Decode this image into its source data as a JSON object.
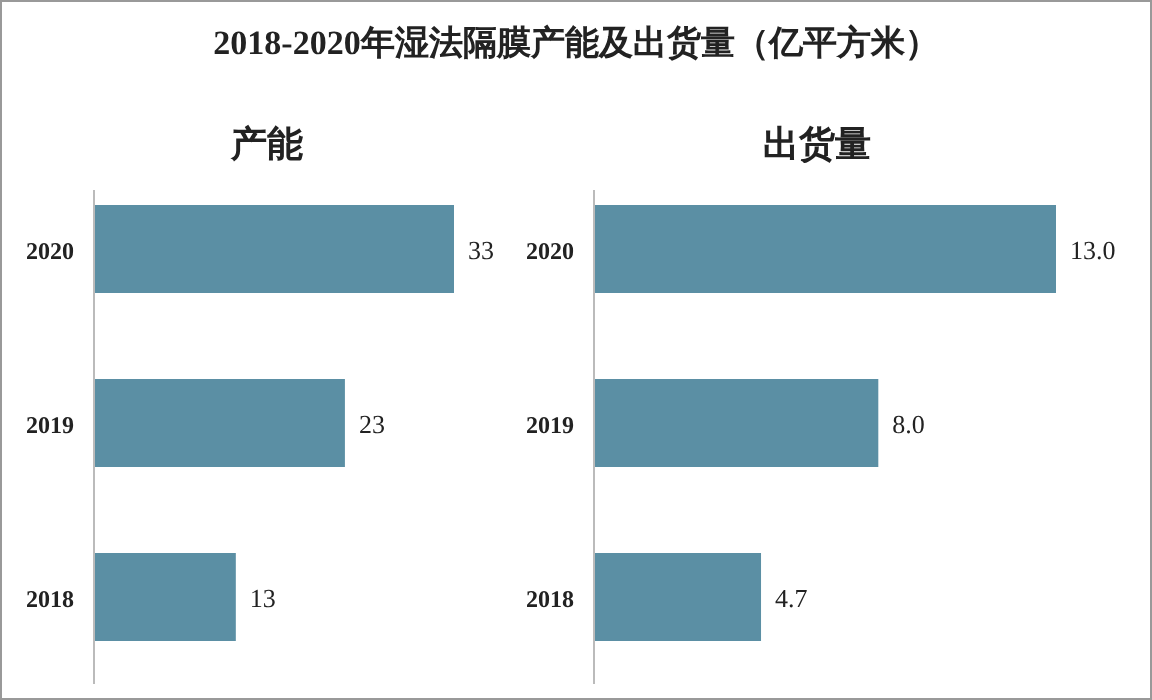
{
  "chart_data": [
    {
      "type": "bar",
      "orientation": "horizontal",
      "title": "2018-2020年湿法隔膜产能及出货量（亿平方米）",
      "subtitle": "产能",
      "categories": [
        "2020",
        "2019",
        "2018"
      ],
      "values": [
        33,
        23,
        13
      ],
      "color": "#5b8fa4",
      "data_labels": true
    },
    {
      "type": "bar",
      "orientation": "horizontal",
      "subtitle": "出货量",
      "categories": [
        "2020",
        "2019",
        "2018"
      ],
      "values": [
        13.0,
        8.0,
        4.7
      ],
      "value_labels": [
        "13.0",
        "8.0",
        "4.7"
      ],
      "color": "#5b8fa4"
    }
  ]
}
